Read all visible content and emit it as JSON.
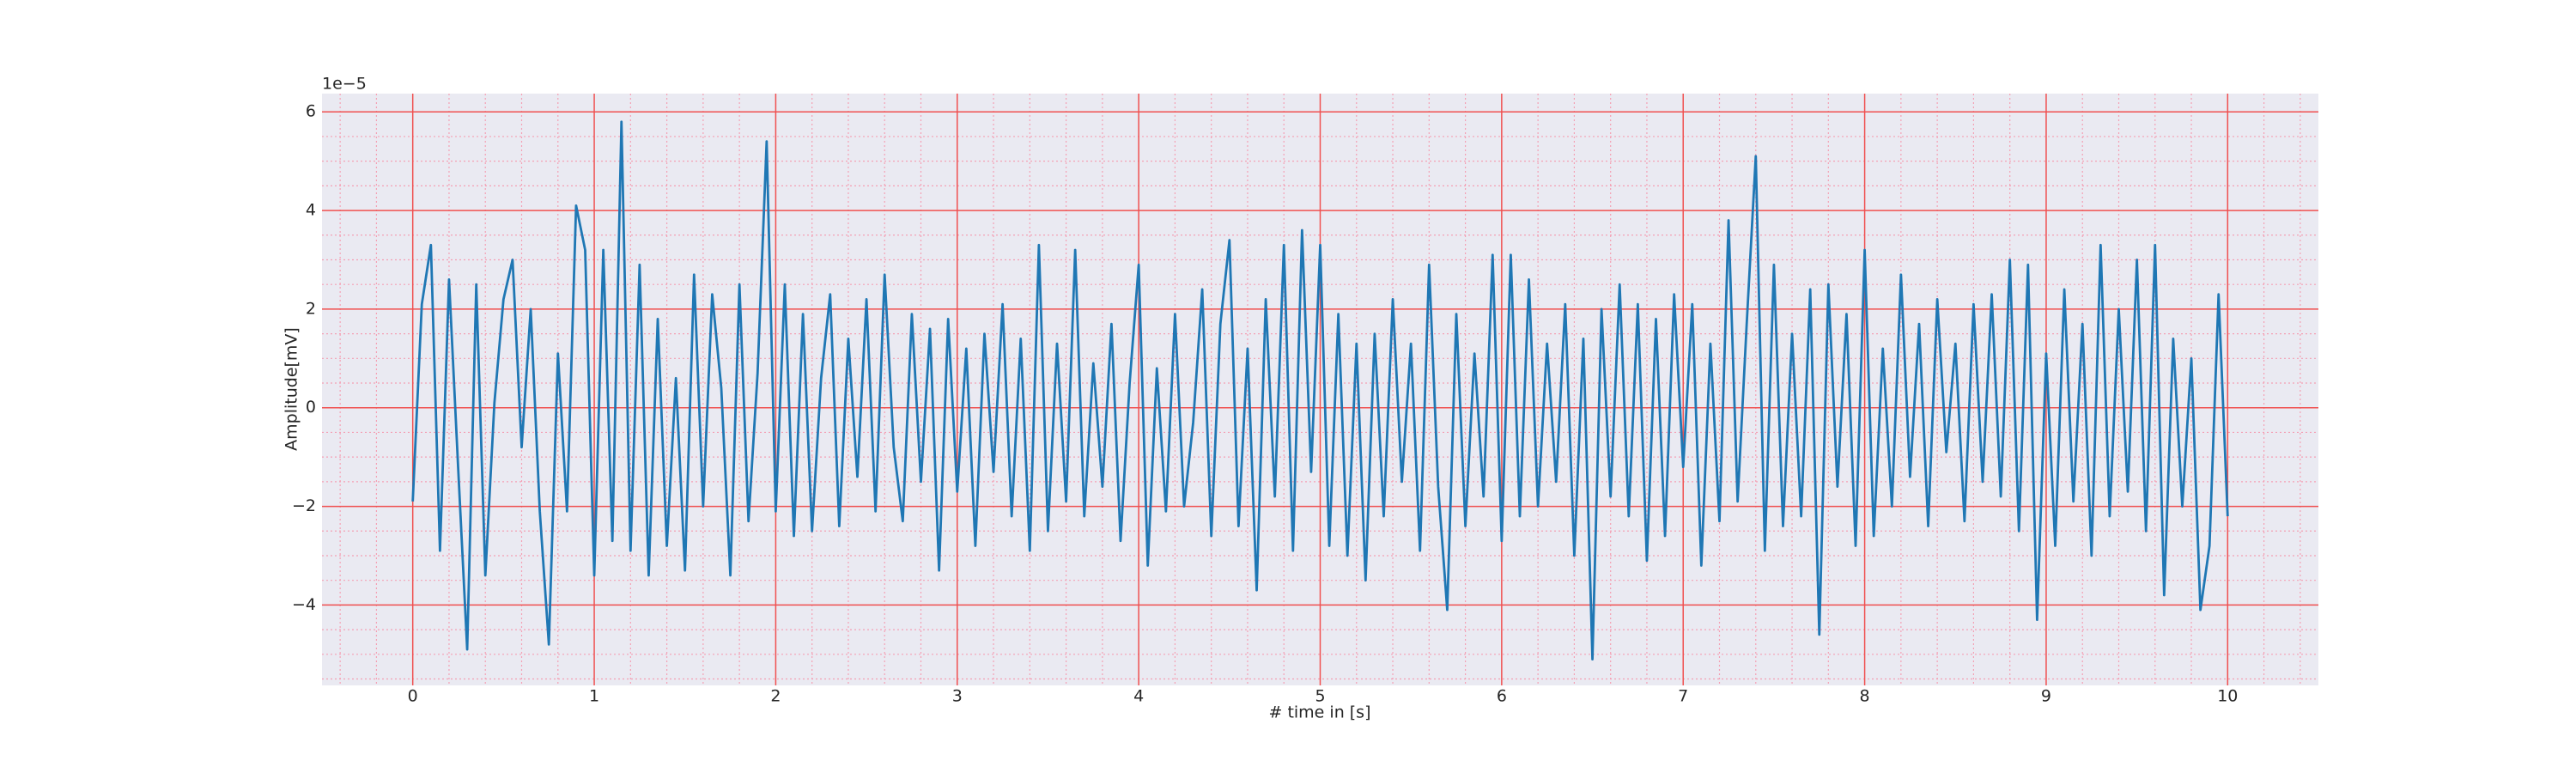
{
  "chart_data": {
    "type": "line",
    "offset_text": "1e−5",
    "ylabel": "Amplitude[mV]",
    "xlabel": "# time in [s]",
    "xlim": [
      -0.5,
      10.5
    ],
    "ylim": [
      -5.63,
      6.37
    ],
    "xticks": [
      0,
      1,
      2,
      3,
      4,
      5,
      6,
      7,
      8,
      9,
      10
    ],
    "yticks": [
      {
        "value": -4,
        "label": "−4"
      },
      {
        "value": -2,
        "label": "−2"
      },
      0,
      2,
      4,
      6
    ],
    "xminorticks": [
      -0.4,
      -0.2,
      0.2,
      0.4,
      0.6,
      0.8,
      1.2,
      1.4,
      1.6,
      1.8,
      2.2,
      2.4,
      2.6,
      2.8,
      3.2,
      3.4,
      3.6,
      3.8,
      4.2,
      4.4,
      4.6,
      4.8,
      5.2,
      5.4,
      5.6,
      5.8,
      6.2,
      6.4,
      6.6,
      6.8,
      7.2,
      7.4,
      7.6,
      7.8,
      8.2,
      8.4,
      8.6,
      8.8,
      9.2,
      9.4,
      9.6,
      9.8,
      10.2,
      10.4
    ],
    "yminorticks": [
      -5.5,
      -5,
      -4.5,
      -3.5,
      -3,
      -2.5,
      -1.5,
      -1,
      -0.5,
      0.5,
      1,
      1.5,
      2.5,
      3,
      3.5,
      4.5,
      5,
      5.5
    ],
    "grid": true,
    "grid_color": "#f05050",
    "minor_grid_color": "#f4a0b4",
    "background": "#eaeaf2",
    "color": "#1f77b4",
    "x": [
      0,
      0.05,
      0.1,
      0.15,
      0.2,
      0.25,
      0.3,
      0.35,
      0.4,
      0.45,
      0.5,
      0.55,
      0.6,
      0.65,
      0.7,
      0.75,
      0.8,
      0.85,
      0.9,
      0.95,
      1,
      1.05,
      1.1,
      1.15,
      1.2,
      1.25,
      1.3,
      1.35,
      1.4,
      1.45,
      1.5,
      1.55,
      1.6,
      1.65,
      1.7,
      1.75,
      1.8,
      1.85,
      1.9,
      1.95,
      2,
      2.05,
      2.1,
      2.15,
      2.2,
      2.25,
      2.3,
      2.35,
      2.4,
      2.45,
      2.5,
      2.55,
      2.6,
      2.65,
      2.7,
      2.75,
      2.8,
      2.85,
      2.9,
      2.95,
      3,
      3.05,
      3.1,
      3.15,
      3.2,
      3.25,
      3.3,
      3.35,
      3.4,
      3.45,
      3.5,
      3.55,
      3.6,
      3.65,
      3.7,
      3.75,
      3.8,
      3.85,
      3.9,
      3.95,
      4,
      4.05,
      4.1,
      4.15,
      4.2,
      4.25,
      4.3,
      4.35,
      4.4,
      4.45,
      4.5,
      4.55,
      4.6,
      4.65,
      4.7,
      4.75,
      4.8,
      4.85,
      4.9,
      4.95,
      5,
      5.05,
      5.1,
      5.15,
      5.2,
      5.25,
      5.3,
      5.35,
      5.4,
      5.45,
      5.5,
      5.55,
      5.6,
      5.65,
      5.7,
      5.75,
      5.8,
      5.85,
      5.9,
      5.95,
      6,
      6.05,
      6.1,
      6.15,
      6.2,
      6.25,
      6.3,
      6.35,
      6.4,
      6.45,
      6.5,
      6.55,
      6.6,
      6.65,
      6.7,
      6.75,
      6.8,
      6.85,
      6.9,
      6.95,
      7,
      7.05,
      7.1,
      7.15,
      7.2,
      7.25,
      7.3,
      7.35,
      7.4,
      7.45,
      7.5,
      7.55,
      7.6,
      7.65,
      7.7,
      7.75,
      7.8,
      7.85,
      7.9,
      7.95,
      8,
      8.05,
      8.1,
      8.15,
      8.2,
      8.25,
      8.3,
      8.35,
      8.4,
      8.45,
      8.5,
      8.55,
      8.6,
      8.65,
      8.7,
      8.75,
      8.8,
      8.85,
      8.9,
      8.95,
      9,
      9.05,
      9.1,
      9.15,
      9.2,
      9.25,
      9.3,
      9.35,
      9.4,
      9.45,
      9.5,
      9.55,
      9.6,
      9.65,
      9.7,
      9.75,
      9.8,
      9.85,
      9.9,
      9.95,
      10
    ],
    "values": [
      -1.9,
      2.1,
      3.3,
      -2.9,
      2.6,
      -1.2,
      -4.9,
      2.5,
      -3.4,
      0.1,
      2.2,
      3.0,
      -0.8,
      2.0,
      -2.1,
      -4.8,
      1.1,
      -2.1,
      4.1,
      3.2,
      -3.4,
      3.2,
      -2.7,
      5.8,
      -2.9,
      2.9,
      -3.4,
      1.8,
      -2.8,
      0.6,
      -3.3,
      2.7,
      -2.0,
      2.3,
      0.4,
      -3.4,
      2.5,
      -2.3,
      0.7,
      5.4,
      -2.1,
      2.5,
      -2.6,
      1.9,
      -2.5,
      0.6,
      2.3,
      -2.4,
      1.4,
      -1.4,
      2.2,
      -2.1,
      2.7,
      -0.8,
      -2.3,
      1.9,
      -1.5,
      1.6,
      -3.3,
      1.8,
      -1.7,
      1.2,
      -2.8,
      1.5,
      -1.3,
      2.1,
      -2.2,
      1.4,
      -2.9,
      3.3,
      -2.5,
      1.3,
      -1.9,
      3.2,
      -2.2,
      0.9,
      -1.6,
      1.7,
      -2.7,
      0.5,
      2.9,
      -3.2,
      0.8,
      -2.1,
      1.9,
      -2.0,
      -0.3,
      2.4,
      -2.6,
      1.7,
      3.4,
      -2.4,
      1.2,
      -3.7,
      2.2,
      -1.8,
      3.3,
      -2.9,
      3.6,
      -1.3,
      3.3,
      -2.8,
      1.9,
      -3.0,
      1.3,
      -3.5,
      1.5,
      -2.2,
      2.2,
      -1.5,
      1.3,
      -2.9,
      2.9,
      -1.6,
      -4.1,
      1.9,
      -2.4,
      1.1,
      -1.8,
      3.1,
      -2.7,
      3.1,
      -2.2,
      2.6,
      -2.0,
      1.3,
      -1.5,
      2.1,
      -3.0,
      1.4,
      -5.1,
      2.0,
      -1.8,
      2.5,
      -2.2,
      2.1,
      -3.1,
      1.8,
      -2.6,
      2.3,
      -1.2,
      2.1,
      -3.2,
      1.3,
      -2.3,
      3.8,
      -1.9,
      1.7,
      5.1,
      -2.9,
      2.9,
      -2.4,
      1.5,
      -2.2,
      2.4,
      -4.6,
      2.5,
      -1.6,
      1.9,
      -2.8,
      3.2,
      -2.6,
      1.2,
      -2.0,
      2.7,
      -1.4,
      1.7,
      -2.4,
      2.2,
      -0.9,
      1.3,
      -2.3,
      2.1,
      -1.5,
      2.3,
      -1.8,
      3.0,
      -2.5,
      2.9,
      -4.3,
      1.1,
      -2.8,
      2.4,
      -1.9,
      1.7,
      -3.0,
      3.3,
      -2.2,
      2.0,
      -1.7,
      3.0,
      -2.5,
      3.3,
      -3.8,
      1.4,
      -2.0,
      1.0,
      -4.1,
      -2.8,
      2.3,
      -2.2
    ]
  }
}
